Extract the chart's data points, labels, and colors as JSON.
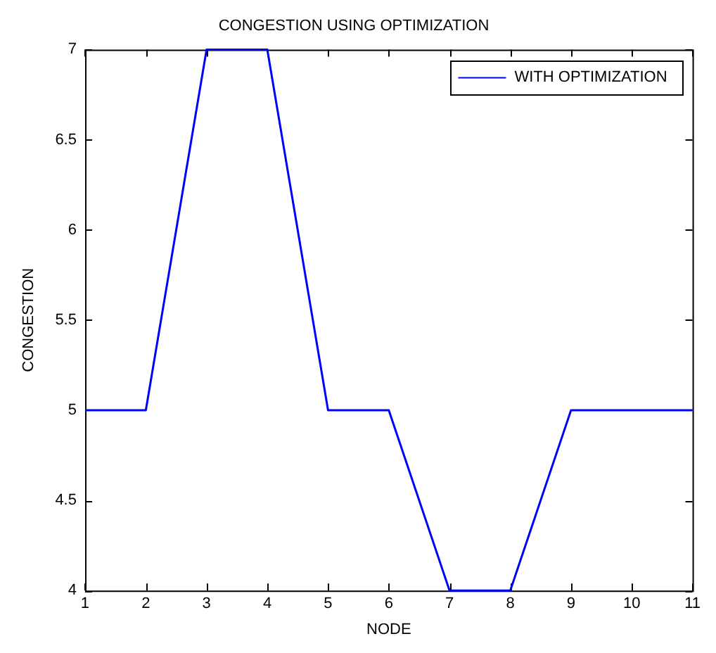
{
  "chart_data": {
    "type": "line",
    "title": "CONGESTION USING OPTIMIZATION",
    "xlabel": "NODE",
    "ylabel": "CONGESTION",
    "x": [
      1,
      2,
      3,
      4,
      5,
      6,
      7,
      8,
      9,
      10,
      11
    ],
    "series": [
      {
        "name": "WITH OPTIMIZATION",
        "color": "#0000ff",
        "values": [
          5,
          5,
          7,
          7,
          5,
          5,
          4,
          4,
          5,
          5,
          5
        ]
      }
    ],
    "xlim": [
      1,
      11
    ],
    "xticks": [
      1,
      2,
      3,
      4,
      5,
      6,
      7,
      8,
      9,
      10,
      11
    ],
    "ylim": [
      4,
      7
    ],
    "yticks": [
      4,
      4.5,
      5,
      5.5,
      6,
      6.5,
      7
    ],
    "grid": false,
    "legend": "top right",
    "marker": "none",
    "line_style": "solid"
  }
}
